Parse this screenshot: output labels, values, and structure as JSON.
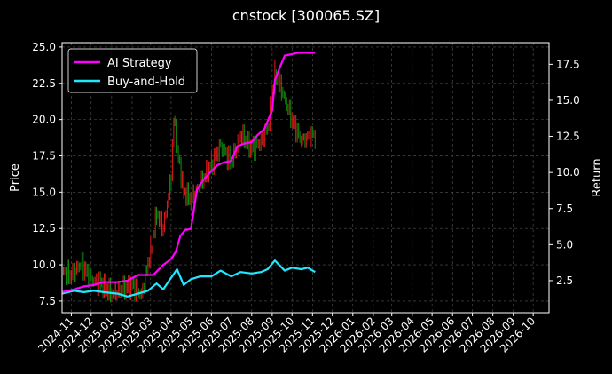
{
  "chart_data": {
    "type": "line",
    "title": "cnstock [300065.SZ]",
    "ylabel_left": "Price",
    "ylabel_right": "Return",
    "ylim_left": [
      6.7,
      25.3
    ],
    "ylim_right": [
      0.28,
      19.0
    ],
    "yticks_left": [
      "7.5",
      "10.0",
      "12.5",
      "15.0",
      "17.5",
      "20.0",
      "22.5",
      "25.0"
    ],
    "yticks_right": [
      "2.5",
      "5.0",
      "7.5",
      "10.0",
      "12.5",
      "15.0",
      "17.5"
    ],
    "xlim": [
      "2024-10-18",
      "2026-10-25"
    ],
    "xticks": [
      "2024-11",
      "2024-12",
      "2025-01",
      "2025-02",
      "2025-03",
      "2025-04",
      "2025-05",
      "2025-06",
      "2025-07",
      "2025-08",
      "2025-09",
      "2025-10",
      "2025-11",
      "2025-12",
      "2026-01",
      "2026-02",
      "2026-03",
      "2026-04",
      "2026-05",
      "2026-06",
      "2026-07",
      "2026-08",
      "2026-09",
      "2026-10"
    ],
    "grid": true,
    "legend_position": "upper-left",
    "colors": {
      "ai": "#ff00ff",
      "buyhold": "#22e8ff",
      "up": "#e41a1a",
      "down": "#0e8f0e",
      "grid": "#555555"
    },
    "series": [
      {
        "name": "AI Strategy",
        "axis": "right",
        "x": [
          "2024-10-18",
          "2024-11-05",
          "2024-11-20",
          "2024-12-05",
          "2024-12-20",
          "2025-01-10",
          "2025-01-25",
          "2025-02-10",
          "2025-02-25",
          "2025-03-05",
          "2025-03-20",
          "2025-04-01",
          "2025-04-08",
          "2025-04-15",
          "2025-04-22",
          "2025-05-01",
          "2025-05-10",
          "2025-05-20",
          "2025-06-01",
          "2025-06-10",
          "2025-06-20",
          "2025-07-01",
          "2025-07-10",
          "2025-07-20",
          "2025-08-01",
          "2025-08-10",
          "2025-08-20",
          "2025-09-01",
          "2025-09-05",
          "2025-09-10",
          "2025-09-20",
          "2025-10-01",
          "2025-10-10",
          "2025-10-20",
          "2025-11-01",
          "2025-11-05"
        ],
        "values": [
          1.7,
          1.9,
          2.1,
          2.2,
          2.4,
          2.4,
          2.5,
          2.9,
          2.9,
          2.9,
          3.6,
          4.0,
          4.5,
          5.6,
          6.0,
          6.1,
          8.8,
          9.5,
          10.1,
          10.5,
          10.7,
          10.8,
          11.8,
          12.0,
          12.1,
          12.6,
          13.0,
          14.3,
          16.4,
          17.0,
          18.1,
          18.2,
          18.3,
          18.3,
          18.3,
          18.3
        ]
      },
      {
        "name": "Buy-and-Hold",
        "axis": "right",
        "x": [
          "2024-10-18",
          "2024-11-05",
          "2024-11-20",
          "2024-12-05",
          "2024-12-20",
          "2025-01-10",
          "2025-01-25",
          "2025-02-10",
          "2025-02-25",
          "2025-03-10",
          "2025-03-20",
          "2025-04-01",
          "2025-04-10",
          "2025-04-20",
          "2025-05-01",
          "2025-05-15",
          "2025-06-01",
          "2025-06-15",
          "2025-07-01",
          "2025-07-15",
          "2025-08-01",
          "2025-08-15",
          "2025-08-25",
          "2025-09-05",
          "2025-09-20",
          "2025-10-01",
          "2025-10-15",
          "2025-10-25",
          "2025-11-05"
        ],
        "values": [
          1.6,
          1.8,
          1.7,
          1.8,
          1.7,
          1.6,
          1.4,
          1.6,
          1.8,
          2.3,
          1.9,
          2.7,
          3.3,
          2.2,
          2.6,
          2.8,
          2.8,
          3.2,
          2.8,
          3.1,
          3.0,
          3.1,
          3.3,
          3.9,
          3.2,
          3.4,
          3.3,
          3.4,
          3.1
        ]
      },
      {
        "name": "Price",
        "axis": "left",
        "style": "candlestick",
        "x": [
          "2024-10-18",
          "2024-11-01",
          "2024-11-15",
          "2024-12-01",
          "2024-12-15",
          "2025-01-01",
          "2025-01-15",
          "2025-02-01",
          "2025-02-15",
          "2025-03-01",
          "2025-03-10",
          "2025-03-20",
          "2025-04-01",
          "2025-04-05",
          "2025-04-10",
          "2025-04-20",
          "2025-05-01",
          "2025-05-15",
          "2025-06-01",
          "2025-06-15",
          "2025-07-01",
          "2025-07-15",
          "2025-08-01",
          "2025-08-15",
          "2025-08-25",
          "2025-09-05",
          "2025-09-15",
          "2025-10-01",
          "2025-10-15",
          "2025-11-01",
          "2025-11-05"
        ],
        "values": [
          9.6,
          9.2,
          10.1,
          9.0,
          8.7,
          8.0,
          8.3,
          8.6,
          7.9,
          11.0,
          13.5,
          12.5,
          16.0,
          20.0,
          18.0,
          15.0,
          14.5,
          15.5,
          17.0,
          18.2,
          17.0,
          19.0,
          18.0,
          18.5,
          19.5,
          23.2,
          22.0,
          20.0,
          18.5,
          19.0,
          18.8
        ]
      }
    ],
    "legend": [
      "AI Strategy",
      "Buy-and-Hold"
    ]
  }
}
